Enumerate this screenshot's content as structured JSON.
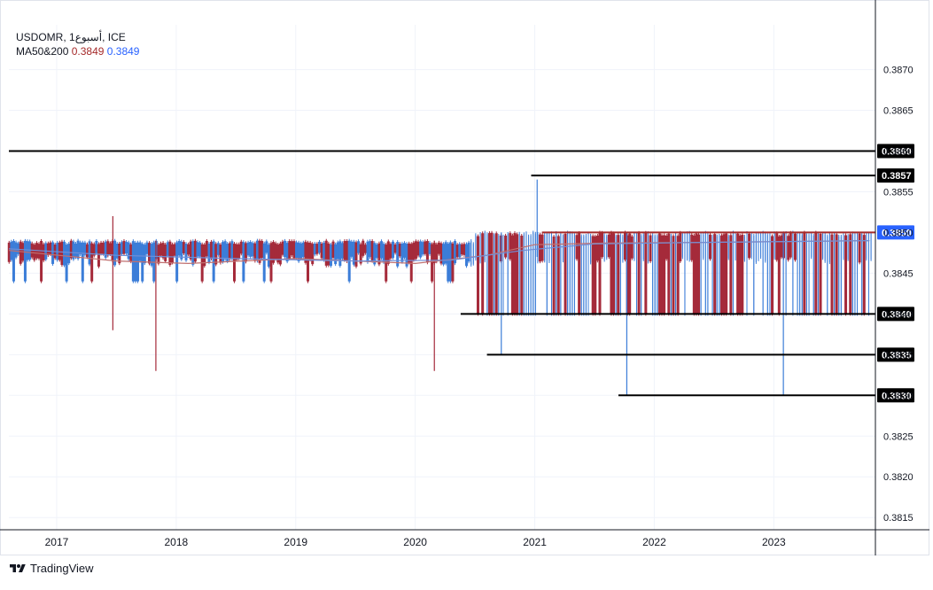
{
  "header": {
    "symbol": "USDOMR, 1أسبوع, ICE",
    "ma_label": "MA50&200",
    "ma50_value": "0.3849",
    "ma200_value": "0.3849"
  },
  "footer": {
    "brand": "TradingView"
  },
  "colors": {
    "up": "#3b7dd8",
    "down": "#a52a3a",
    "ma50": "#c07070",
    "ma200": "#6f8fd8",
    "level": "#000000"
  },
  "chart_data": {
    "type": "candlestick",
    "x_ticks": [
      "2017",
      "2018",
      "2019",
      "2020",
      "2021",
      "2022",
      "2023"
    ],
    "y_ticks": [
      "0.3870",
      "0.3865",
      "0.3860",
      "0.3855",
      "0.3850",
      "0.3845",
      "0.3840",
      "0.3835",
      "0.3830",
      "0.3825",
      "0.3820",
      "0.3815"
    ],
    "ylim": [
      0.38135,
      0.38755
    ],
    "xlim": [
      2016.6,
      2023.85
    ],
    "levels": [
      {
        "price": 0.386,
        "label": "0.3860",
        "from": 2016.6,
        "color": "#000000"
      },
      {
        "price": 0.3857,
        "label": "0.3857",
        "from": 2020.97,
        "color": "#000000"
      },
      {
        "price": 0.385,
        "label": "0.3850",
        "from": 2021.06,
        "color": "#a52a2a",
        "highlight": true
      },
      {
        "price": 0.384,
        "label": "0.3840",
        "from": 2020.38,
        "color": "#000000"
      },
      {
        "price": 0.3835,
        "label": "0.3835",
        "from": 2020.6,
        "color": "#000000"
      },
      {
        "price": 0.383,
        "label": "0.3830",
        "from": 2021.7,
        "color": "#000000"
      }
    ],
    "spikes": [
      {
        "x": 2017.47,
        "low": 0.3838,
        "high": 0.3852
      },
      {
        "x": 2017.83,
        "low": 0.3833,
        "high": 0.3849
      },
      {
        "x": 2020.16,
        "low": 0.3833,
        "high": 0.3849
      },
      {
        "x": 2020.72,
        "low": 0.3835,
        "high": 0.385
      },
      {
        "x": 2021.02,
        "low": 0.3847,
        "high": 0.38565
      },
      {
        "x": 2021.77,
        "low": 0.383,
        "high": 0.385
      },
      {
        "x": 2023.08,
        "low": 0.383,
        "high": 0.385
      }
    ],
    "ma50": [
      [
        2016.6,
        0.38478
      ],
      [
        2017.5,
        0.38465
      ],
      [
        2018.1,
        0.38462
      ],
      [
        2019.0,
        0.38468
      ],
      [
        2020.0,
        0.38462
      ],
      [
        2020.6,
        0.38472
      ],
      [
        2021.0,
        0.38485
      ],
      [
        2021.6,
        0.38487
      ],
      [
        2022.5,
        0.38488
      ],
      [
        2023.8,
        0.3849
      ]
    ],
    "ma200": [
      [
        2016.6,
        0.3848
      ],
      [
        2017.5,
        0.38472
      ],
      [
        2018.5,
        0.38468
      ],
      [
        2019.5,
        0.38465
      ],
      [
        2020.3,
        0.38466
      ],
      [
        2020.9,
        0.38478
      ],
      [
        2021.5,
        0.38486
      ],
      [
        2022.5,
        0.38488
      ],
      [
        2023.8,
        0.3849
      ]
    ],
    "last_price": "0.3850"
  }
}
